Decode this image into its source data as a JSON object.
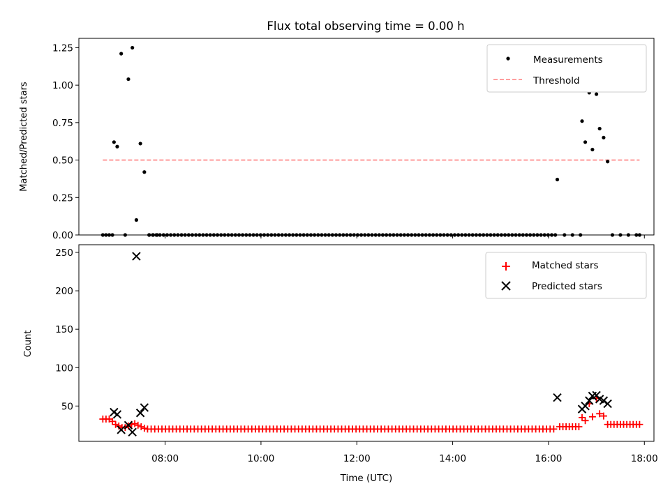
{
  "title": "Flux total observing time = 0.00 h",
  "chart_data": [
    {
      "type": "scatter",
      "ylabel": "Matched/Predicted stars",
      "xlabel": "",
      "xlim": [
        "06:12",
        "18:12"
      ],
      "ylim": [
        0,
        1.3125
      ],
      "yticks": [
        "0.00",
        "0.25",
        "0.50",
        "0.75",
        "1.00",
        "1.25"
      ],
      "ytick_values": [
        0,
        0.25,
        0.5,
        0.75,
        1.0,
        1.25
      ],
      "grid": false,
      "legend_position": "top-right",
      "legend": [
        {
          "label": "Measurements",
          "marker": "dot",
          "color": "#000000"
        },
        {
          "label": "Threshold",
          "marker": "dashed-line",
          "color": "#ff7f7f"
        }
      ],
      "threshold": {
        "value": 0.5,
        "x_start": "06:42",
        "x_end": "17:54"
      },
      "series": [
        {
          "name": "Measurements",
          "color": "#000000",
          "points": [
            {
              "x": "06:42",
              "y": 0
            },
            {
              "x": "06:46",
              "y": 0
            },
            {
              "x": "06:50",
              "y": 0
            },
            {
              "x": "06:54",
              "y": 0
            },
            {
              "x": "06:56",
              "y": 0.62
            },
            {
              "x": "07:00",
              "y": 0.59
            },
            {
              "x": "07:05",
              "y": 1.21
            },
            {
              "x": "07:10",
              "y": 0
            },
            {
              "x": "07:14",
              "y": 1.04
            },
            {
              "x": "07:19",
              "y": 1.25
            },
            {
              "x": "07:24",
              "y": 0.1
            },
            {
              "x": "07:29",
              "y": 0.61
            },
            {
              "x": "07:34",
              "y": 0.42
            },
            {
              "x": "07:40",
              "y": 0
            },
            {
              "x": "07:45",
              "y": 0
            },
            {
              "x": "07:50",
              "y": 0
            },
            {
              "x": "16:11",
              "y": 0.37
            },
            {
              "x": "16:20",
              "y": 0
            },
            {
              "x": "16:30",
              "y": 0
            },
            {
              "x": "16:40",
              "y": 0
            },
            {
              "x": "16:42",
              "y": 0.76
            },
            {
              "x": "16:46",
              "y": 0.62
            },
            {
              "x": "16:51",
              "y": 0.95
            },
            {
              "x": "16:55",
              "y": 0.57
            },
            {
              "x": "17:00",
              "y": 0.94
            },
            {
              "x": "17:04",
              "y": 0.71
            },
            {
              "x": "17:09",
              "y": 0.65
            },
            {
              "x": "17:14",
              "y": 0.49
            },
            {
              "x": "17:20",
              "y": 0
            },
            {
              "x": "17:30",
              "y": 0
            },
            {
              "x": "17:40",
              "y": 0
            },
            {
              "x": "17:50",
              "y": 0
            },
            {
              "x": "17:54",
              "y": 0
            }
          ],
          "zero_run": {
            "from": "07:40",
            "to": "16:10",
            "y": 0
          }
        }
      ]
    },
    {
      "type": "scatter",
      "ylabel": "Count",
      "xlabel": "Time (UTC)",
      "xlim": [
        "06:12",
        "18:12"
      ],
      "xticks": [
        "08:00",
        "10:00",
        "12:00",
        "14:00",
        "16:00",
        "18:00"
      ],
      "ylim": [
        4,
        260
      ],
      "yticks": [
        "50",
        "100",
        "150",
        "200",
        "250"
      ],
      "ytick_values": [
        50,
        100,
        150,
        200,
        250
      ],
      "grid": false,
      "legend_position": "top-right",
      "legend": [
        {
          "label": "Matched stars",
          "marker": "plus",
          "color": "#ff0000"
        },
        {
          "label": "Predicted stars",
          "marker": "x",
          "color": "#000000"
        }
      ],
      "series": [
        {
          "name": "Matched stars",
          "color": "#ff0000",
          "points": [
            {
              "x": "06:42",
              "y": 33
            },
            {
              "x": "06:46",
              "y": 33
            },
            {
              "x": "06:50",
              "y": 33
            },
            {
              "x": "06:54",
              "y": 30
            },
            {
              "x": "06:58",
              "y": 26
            },
            {
              "x": "07:02",
              "y": 24
            },
            {
              "x": "07:06",
              "y": 22
            },
            {
              "x": "07:10",
              "y": 22
            },
            {
              "x": "07:14",
              "y": 24
            },
            {
              "x": "07:18",
              "y": 26
            },
            {
              "x": "07:22",
              "y": 27
            },
            {
              "x": "07:26",
              "y": 25
            },
            {
              "x": "07:30",
              "y": 23
            },
            {
              "x": "07:34",
              "y": 21
            },
            {
              "x": "16:14",
              "y": 23
            },
            {
              "x": "16:18",
              "y": 23
            },
            {
              "x": "16:22",
              "y": 23
            },
            {
              "x": "16:26",
              "y": 23
            },
            {
              "x": "16:30",
              "y": 23
            },
            {
              "x": "16:34",
              "y": 23
            },
            {
              "x": "16:38",
              "y": 23
            },
            {
              "x": "16:42",
              "y": 35
            },
            {
              "x": "16:46",
              "y": 31
            },
            {
              "x": "16:51",
              "y": 53
            },
            {
              "x": "16:55",
              "y": 36
            },
            {
              "x": "17:00",
              "y": 60
            },
            {
              "x": "17:04",
              "y": 40
            },
            {
              "x": "17:09",
              "y": 37
            },
            {
              "x": "17:14",
              "y": 26
            },
            {
              "x": "17:18",
              "y": 26
            },
            {
              "x": "17:22",
              "y": 26
            },
            {
              "x": "17:26",
              "y": 26
            },
            {
              "x": "17:30",
              "y": 26
            },
            {
              "x": "17:34",
              "y": 26
            },
            {
              "x": "17:38",
              "y": 26
            },
            {
              "x": "17:42",
              "y": 26
            },
            {
              "x": "17:46",
              "y": 26
            },
            {
              "x": "17:50",
              "y": 26
            },
            {
              "x": "17:54",
              "y": 26
            }
          ],
          "flat_run": {
            "from": "07:38",
            "to": "16:10",
            "y": 20
          }
        },
        {
          "name": "Predicted stars",
          "color": "#000000",
          "points": [
            {
              "x": "06:56",
              "y": 42
            },
            {
              "x": "07:00",
              "y": 39
            },
            {
              "x": "07:05",
              "y": 19
            },
            {
              "x": "07:14",
              "y": 25
            },
            {
              "x": "07:19",
              "y": 16
            },
            {
              "x": "07:24",
              "y": 245
            },
            {
              "x": "07:29",
              "y": 41
            },
            {
              "x": "07:34",
              "y": 48
            },
            {
              "x": "16:11",
              "y": 61
            },
            {
              "x": "16:42",
              "y": 46
            },
            {
              "x": "16:46",
              "y": 50
            },
            {
              "x": "16:51",
              "y": 57
            },
            {
              "x": "16:55",
              "y": 63
            },
            {
              "x": "17:00",
              "y": 64
            },
            {
              "x": "17:04",
              "y": 59
            },
            {
              "x": "17:09",
              "y": 57
            },
            {
              "x": "17:14",
              "y": 53
            }
          ]
        }
      ]
    }
  ]
}
